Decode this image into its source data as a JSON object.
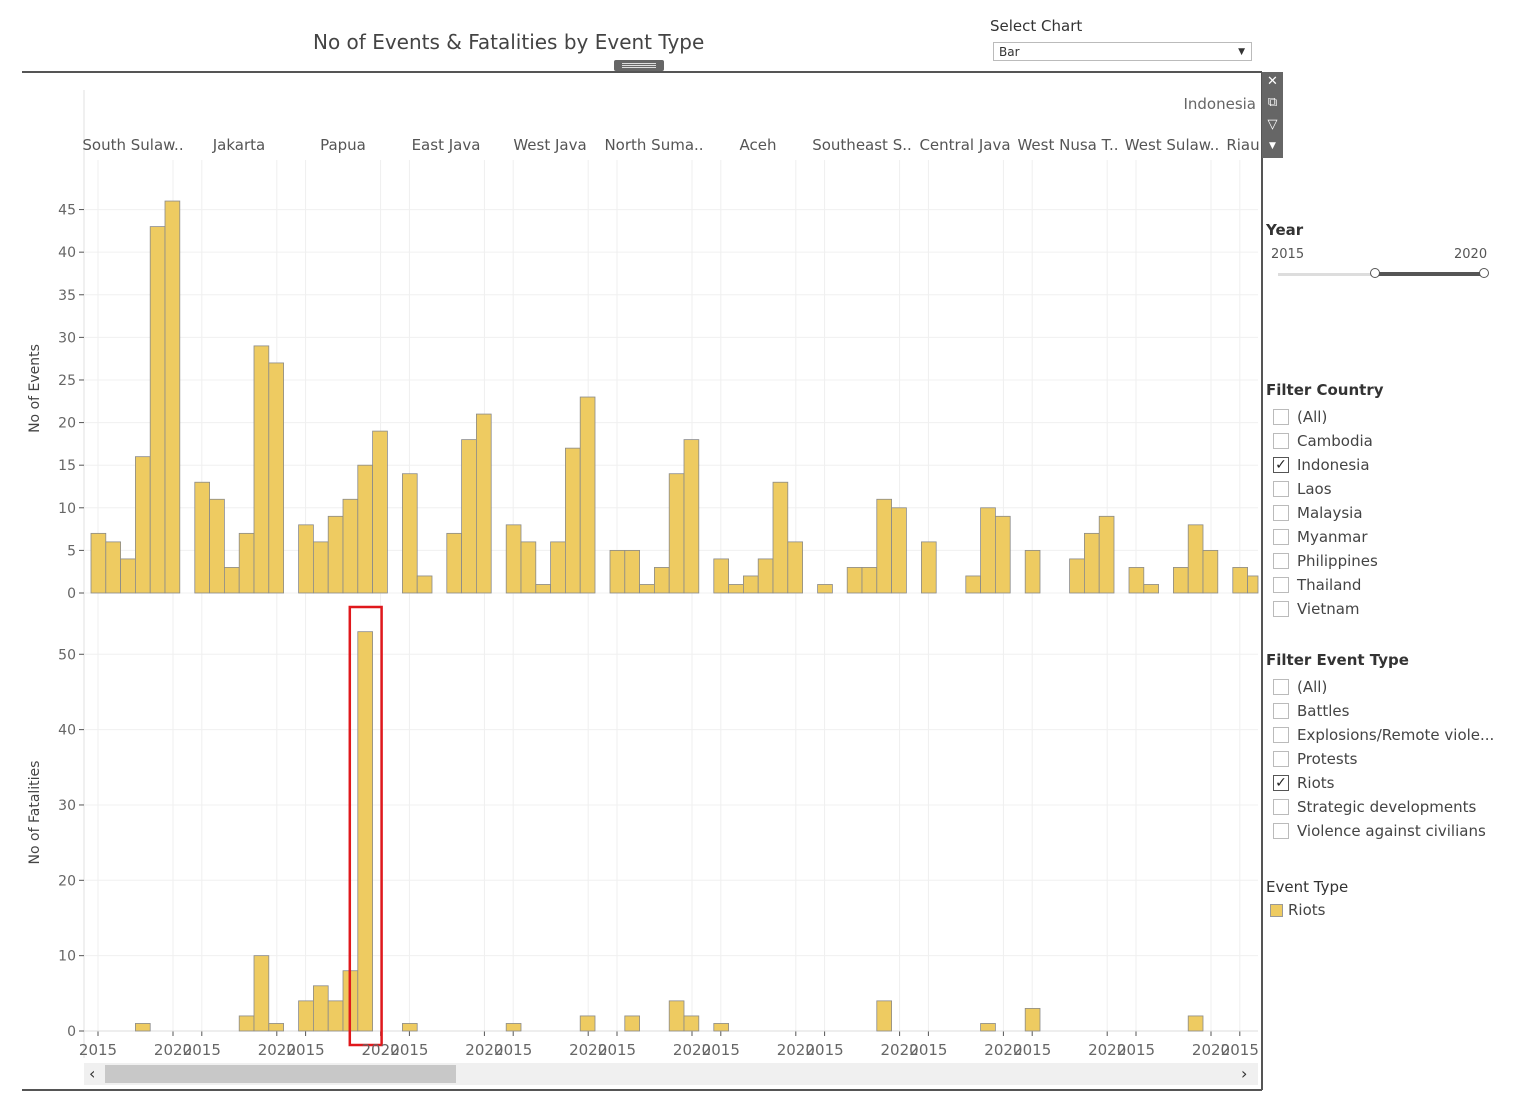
{
  "header": {
    "title": "No of Events & Fatalities by Event Type"
  },
  "select_chart": {
    "label": "Select Chart",
    "value": "Bar"
  },
  "country_label": "Indonesia",
  "year_filter": {
    "title": "Year",
    "min": "2015",
    "max": "2020",
    "selected_range": [
      2015,
      2020
    ]
  },
  "filter_country": {
    "title": "Filter Country",
    "items": [
      {
        "label": "(All)",
        "checked": false
      },
      {
        "label": "Cambodia",
        "checked": false
      },
      {
        "label": "Indonesia",
        "checked": true
      },
      {
        "label": "Laos",
        "checked": false
      },
      {
        "label": "Malaysia",
        "checked": false
      },
      {
        "label": "Myanmar",
        "checked": false
      },
      {
        "label": "Philippines",
        "checked": false
      },
      {
        "label": "Thailand",
        "checked": false
      },
      {
        "label": "Vietnam",
        "checked": false
      }
    ]
  },
  "filter_event_type": {
    "title": "Filter Event Type",
    "items": [
      {
        "label": "(All)",
        "checked": false
      },
      {
        "label": "Battles",
        "checked": false
      },
      {
        "label": "Explosions/Remote viole...",
        "checked": false
      },
      {
        "label": "Protests",
        "checked": false
      },
      {
        "label": "Riots",
        "checked": true
      },
      {
        "label": "Strategic developments",
        "checked": false
      },
      {
        "label": "Violence against civilians",
        "checked": false
      }
    ]
  },
  "legend": {
    "title": "Event Type",
    "items": [
      {
        "label": "Riots",
        "color": "#eecb61"
      }
    ]
  },
  "chart_data": {
    "type": "bar",
    "bar_color": "#eecb61",
    "highlight_color": "#e0181c",
    "regions": [
      "South Sulaw..",
      "Jakarta",
      "Papua",
      "East Java",
      "West Java",
      "North Suma..",
      "Aceh",
      "Southeast S..",
      "Central Java",
      "West Nusa T..",
      "West Sulaw..",
      "Riau"
    ],
    "years": [
      2015,
      2016,
      2017,
      2018,
      2019,
      2020
    ],
    "x_tick_labels": [
      "2015",
      "2020"
    ],
    "events": {
      "ylabel": "No of Events",
      "ylim": [
        0,
        48
      ],
      "ticks": [
        0,
        5,
        10,
        15,
        20,
        25,
        30,
        35,
        40,
        45
      ],
      "values": [
        [
          7,
          6,
          4,
          16,
          43,
          46
        ],
        [
          13,
          11,
          3,
          7,
          29,
          27
        ],
        [
          8,
          6,
          9,
          11,
          15,
          19
        ],
        [
          14,
          2,
          0,
          7,
          18,
          21
        ],
        [
          8,
          6,
          1,
          6,
          17,
          23
        ],
        [
          5,
          5,
          1,
          3,
          14,
          18
        ],
        [
          4,
          1,
          2,
          4,
          13,
          6
        ],
        [
          1,
          0,
          3,
          3,
          11,
          10
        ],
        [
          6,
          0,
          0,
          2,
          10,
          9
        ],
        [
          5,
          0,
          0,
          4,
          7,
          9
        ],
        [
          3,
          1,
          0,
          3,
          8,
          5
        ],
        [
          3,
          2,
          null,
          null,
          null,
          null
        ]
      ]
    },
    "fatalities": {
      "ylabel": "No of Fatalities",
      "ylim": [
        0,
        58
      ],
      "ticks": [
        0,
        10,
        20,
        30,
        40,
        50
      ],
      "values": [
        [
          0,
          0,
          0,
          1,
          0,
          0
        ],
        [
          0,
          0,
          0,
          2,
          10,
          1
        ],
        [
          4,
          6,
          4,
          8,
          53,
          0
        ],
        [
          1,
          0,
          0,
          0,
          0,
          0
        ],
        [
          1,
          0,
          0,
          0,
          0,
          2
        ],
        [
          0,
          2,
          0,
          0,
          4,
          2
        ],
        [
          1,
          0,
          0,
          0,
          0,
          0
        ],
        [
          0,
          0,
          0,
          0,
          4,
          0
        ],
        [
          0,
          0,
          0,
          0,
          1,
          0
        ],
        [
          3,
          0,
          0,
          0,
          0,
          0
        ],
        [
          0,
          0,
          0,
          0,
          2,
          0
        ],
        [
          0,
          0,
          null,
          null,
          null,
          null
        ]
      ],
      "highlight": {
        "region": "Papua",
        "year": 2019
      }
    }
  }
}
